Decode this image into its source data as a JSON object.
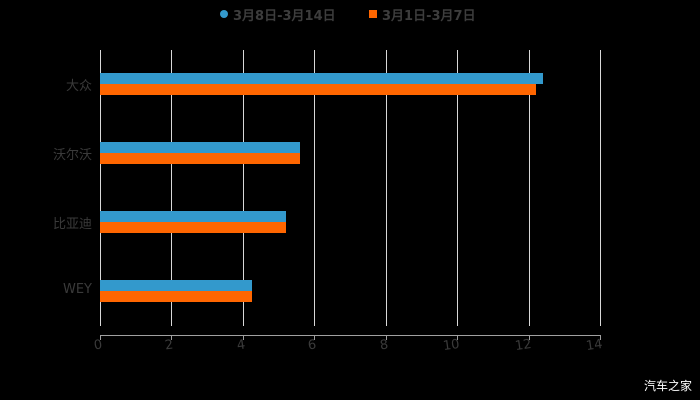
{
  "legend": {
    "items": [
      {
        "label": "3月8日-3月14日",
        "color": "#3399cc",
        "marker": "circle"
      },
      {
        "label": "3月1日-3月7日",
        "color": "#ff6600",
        "marker": "square"
      }
    ]
  },
  "watermark": "汽车之家",
  "chart_data": {
    "type": "bar",
    "orientation": "horizontal",
    "title": "",
    "categories": [
      "大众",
      "沃尔沃",
      "比亚迪",
      "WEY"
    ],
    "series": [
      {
        "name": "3月8日-3月14日",
        "color": "#3399cc",
        "values": [
          12.4,
          5.6,
          5.2,
          4.25
        ]
      },
      {
        "name": "3月1日-3月7日",
        "color": "#ff6600",
        "values": [
          12.2,
          5.6,
          5.2,
          4.25
        ]
      }
    ],
    "xlabel": "",
    "ylabel": "",
    "xlim": [
      0,
      14
    ],
    "xticks": [
      "0",
      "2",
      "4",
      "6",
      "8",
      "10",
      "12",
      "14"
    ],
    "grid": true,
    "legend_position": "top"
  }
}
